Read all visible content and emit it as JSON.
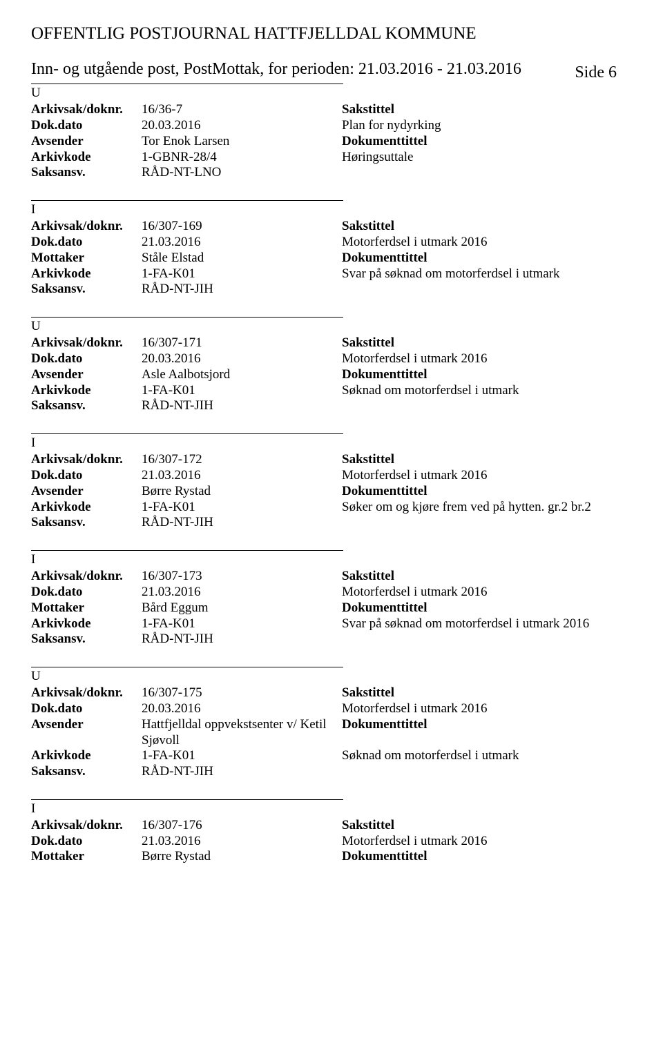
{
  "header": {
    "title": "OFFENTLIG POSTJOURNAL HATTFJELLDAL KOMMUNE",
    "subtitle": "Inn- og utgående post, PostMottak, for perioden: 21.03.2016 - 21.03.2016",
    "side": "Side 6"
  },
  "labels": {
    "arkivsak": "Arkivsak/doknr.",
    "dokdato": "Dok.dato",
    "avsender": "Avsender",
    "mottaker": "Mottaker",
    "arkivkode": "Arkivkode",
    "saksansv": "Saksansv.",
    "sakstittel": "Sakstittel",
    "dokumenttittel": "Dokumenttittel"
  },
  "entries": [
    {
      "type": "U",
      "arkivsak": "16/36-7",
      "dokdato": "20.03.2016",
      "party_label": "Avsender",
      "party": "Tor Enok Larsen",
      "arkivkode": "1-GBNR-28/4",
      "saksansv": "RÅD-NT-LNO",
      "sakstittel": "Plan for nydyrking",
      "dokumenttittel": "Høringsuttale"
    },
    {
      "type": "I",
      "arkivsak": "16/307-169",
      "dokdato": "21.03.2016",
      "party_label": "Mottaker",
      "party": "Ståle Elstad",
      "arkivkode": "1-FA-K01",
      "saksansv": "RÅD-NT-JIH",
      "sakstittel": "Motorferdsel i utmark 2016",
      "dokumenttittel": "Svar på søknad om motorferdsel i utmark"
    },
    {
      "type": "U",
      "arkivsak": "16/307-171",
      "dokdato": "20.03.2016",
      "party_label": "Avsender",
      "party": "Asle Aalbotsjord",
      "arkivkode": "1-FA-K01",
      "saksansv": "RÅD-NT-JIH",
      "sakstittel": "Motorferdsel i utmark 2016",
      "dokumenttittel": "Søknad om motorferdsel i utmark"
    },
    {
      "type": "I",
      "arkivsak": "16/307-172",
      "dokdato": "21.03.2016",
      "party_label": "Avsender",
      "party": "Børre Rystad",
      "arkivkode": "1-FA-K01",
      "saksansv": "RÅD-NT-JIH",
      "sakstittel": "Motorferdsel i utmark 2016",
      "dokumenttittel": "Søker om og kjøre frem ved på hytten. gr.2 br.2"
    },
    {
      "type": "I",
      "arkivsak": "16/307-173",
      "dokdato": "21.03.2016",
      "party_label": "Mottaker",
      "party": "Bård Eggum",
      "arkivkode": "1-FA-K01",
      "saksansv": "RÅD-NT-JIH",
      "sakstittel": "Motorferdsel i utmark 2016",
      "dokumenttittel": "Svar på søknad om motorferdsel  i utmark 2016"
    },
    {
      "type": "U",
      "arkivsak": "16/307-175",
      "dokdato": "20.03.2016",
      "party_label": "Avsender",
      "party": "Hattfjelldal oppvekstsenter v/ Ketil Sjøvoll",
      "arkivkode": "1-FA-K01",
      "saksansv": "RÅD-NT-JIH",
      "sakstittel": "Motorferdsel i utmark 2016",
      "dokumenttittel": "Søknad om motorferdsel i utmark"
    },
    {
      "type": "I",
      "arkivsak": "16/307-176",
      "dokdato": "21.03.2016",
      "party_label": "Mottaker",
      "party": "Børre Rystad",
      "arkivkode": "",
      "saksansv": "",
      "sakstittel": "Motorferdsel i utmark 2016",
      "dokumenttittel": "",
      "partial": true
    }
  ]
}
